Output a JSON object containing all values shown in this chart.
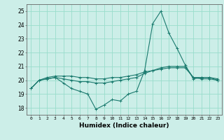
{
  "title": "",
  "xlabel": "Humidex (Indice chaleur)",
  "ylabel": "",
  "xlim": [
    -0.5,
    23.5
  ],
  "ylim": [
    17.5,
    25.5
  ],
  "yticks": [
    18,
    19,
    20,
    21,
    22,
    23,
    24,
    25
  ],
  "xticks": [
    0,
    1,
    2,
    3,
    4,
    5,
    6,
    7,
    8,
    9,
    10,
    11,
    12,
    13,
    14,
    15,
    16,
    17,
    18,
    19,
    20,
    21,
    22,
    23
  ],
  "bg_color": "#cceee8",
  "grid_color": "#99ddcc",
  "line_color": "#1a7a6e",
  "lines": [
    {
      "x": [
        0,
        1,
        2,
        3,
        4,
        5,
        6,
        7,
        8,
        9,
        10,
        11,
        12,
        13,
        14,
        15,
        16,
        17,
        18,
        19,
        20,
        21,
        22,
        23
      ],
      "y": [
        19.4,
        20.0,
        20.1,
        20.2,
        19.8,
        19.4,
        19.2,
        19.0,
        17.9,
        18.2,
        18.6,
        18.5,
        19.0,
        19.2,
        20.7,
        24.1,
        25.0,
        23.4,
        22.3,
        21.1,
        20.1,
        20.2,
        20.2,
        20.0
      ]
    },
    {
      "x": [
        0,
        1,
        2,
        3,
        4,
        5,
        6,
        7,
        8,
        9,
        10,
        11,
        12,
        13,
        14,
        15,
        16,
        17,
        18,
        19,
        20,
        21,
        22,
        23
      ],
      "y": [
        19.4,
        20.0,
        20.1,
        20.2,
        20.1,
        20.0,
        19.9,
        19.9,
        19.8,
        19.8,
        19.9,
        20.0,
        20.1,
        20.2,
        20.5,
        20.7,
        20.9,
        21.0,
        21.0,
        21.0,
        20.2,
        20.1,
        20.1,
        20.0
      ]
    },
    {
      "x": [
        0,
        1,
        2,
        3,
        4,
        5,
        6,
        7,
        8,
        9,
        10,
        11,
        12,
        13,
        14,
        15,
        16,
        17,
        18,
        19,
        20,
        21,
        22,
        23
      ],
      "y": [
        19.4,
        20.0,
        20.2,
        20.3,
        20.3,
        20.3,
        20.2,
        20.2,
        20.1,
        20.1,
        20.2,
        20.2,
        20.3,
        20.4,
        20.6,
        20.7,
        20.8,
        20.9,
        20.9,
        20.9,
        20.2,
        20.2,
        20.2,
        20.1
      ]
    }
  ]
}
